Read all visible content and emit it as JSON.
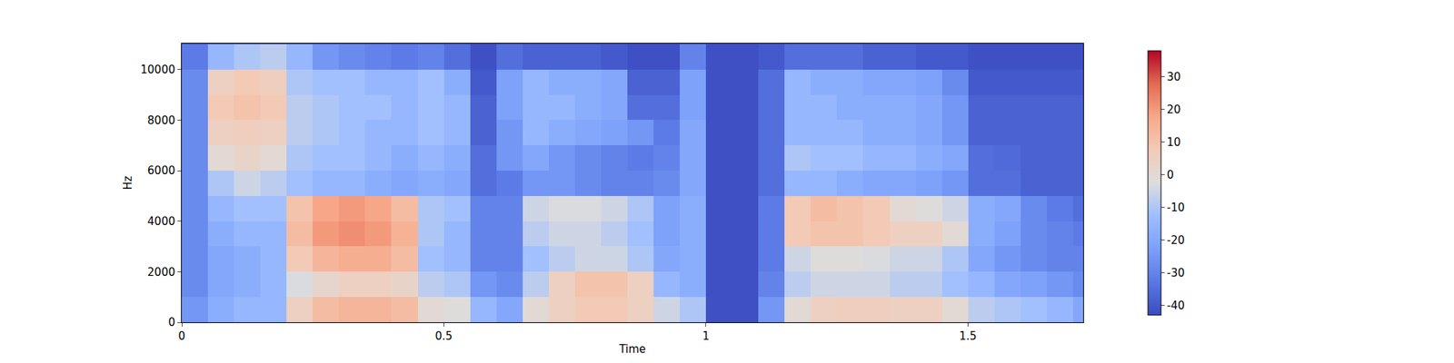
{
  "chart_data": {
    "type": "heatmap",
    "x_label": "Time",
    "y_label": "Hz",
    "x": [
      0.025,
      0.075,
      0.125,
      0.175,
      0.225,
      0.275,
      0.325,
      0.375,
      0.425,
      0.475,
      0.525,
      0.575,
      0.625,
      0.675,
      0.725,
      0.775,
      0.825,
      0.875,
      0.925,
      0.975,
      1.025,
      1.075,
      1.125,
      1.175,
      1.225,
      1.275,
      1.325,
      1.375,
      1.425,
      1.475,
      1.525,
      1.575,
      1.625,
      1.675,
      1.725
    ],
    "y": [
      500,
      1500,
      2500,
      3500,
      4500,
      5500,
      6500,
      7500,
      8500,
      9500,
      10500
    ],
    "z": [
      [
        -25,
        -18,
        -15,
        -15,
        5,
        12,
        14,
        14,
        12,
        0,
        -2,
        -15,
        -20,
        0,
        5,
        8,
        8,
        5,
        -5,
        -10,
        -42,
        -42,
        -25,
        0,
        5,
        6,
        6,
        5,
        5,
        0,
        -8,
        -10,
        -12,
        -15,
        -20
      ],
      [
        -28,
        -20,
        -18,
        -15,
        -3,
        2,
        5,
        5,
        3,
        -8,
        -10,
        -25,
        -28,
        -8,
        5,
        10,
        10,
        5,
        -15,
        -18,
        -42,
        -42,
        -30,
        -8,
        -5,
        -5,
        -5,
        -8,
        -8,
        -12,
        -15,
        -20,
        -22,
        -25,
        -28
      ],
      [
        -28,
        -20,
        -18,
        -15,
        8,
        14,
        16,
        16,
        12,
        -12,
        -15,
        -30,
        -30,
        -12,
        -8,
        -5,
        -5,
        -10,
        -20,
        -18,
        -42,
        -42,
        -32,
        -5,
        -2,
        -2,
        -3,
        -5,
        -5,
        -10,
        -20,
        -25,
        -28,
        -30,
        -30
      ],
      [
        -28,
        -18,
        -15,
        -15,
        12,
        20,
        22,
        20,
        15,
        -10,
        -15,
        -30,
        -30,
        -8,
        -5,
        -5,
        -8,
        -12,
        -22,
        -18,
        -42,
        -42,
        -32,
        8,
        10,
        10,
        8,
        5,
        5,
        0,
        -18,
        -22,
        -28,
        -30,
        -32
      ],
      [
        -28,
        -15,
        -12,
        -12,
        10,
        18,
        20,
        18,
        12,
        -10,
        -12,
        -30,
        -30,
        -5,
        -3,
        -3,
        -5,
        -10,
        -22,
        -18,
        -42,
        -42,
        -32,
        8,
        12,
        10,
        8,
        0,
        -2,
        -5,
        -18,
        -20,
        -28,
        -32,
        -35
      ],
      [
        -28,
        -10,
        -5,
        -8,
        -12,
        -15,
        -15,
        -18,
        -20,
        -18,
        -20,
        -35,
        -32,
        -25,
        -25,
        -28,
        -30,
        -30,
        -28,
        -20,
        -42,
        -42,
        -35,
        -15,
        -15,
        -18,
        -20,
        -20,
        -22,
        -25,
        -35,
        -35,
        -38,
        -38,
        -38
      ],
      [
        -28,
        0,
        3,
        0,
        -10,
        -12,
        -12,
        -15,
        -18,
        -15,
        -18,
        -35,
        -25,
        -20,
        -25,
        -28,
        -30,
        -32,
        -30,
        -20,
        -42,
        -42,
        -35,
        -10,
        -12,
        -12,
        -15,
        -15,
        -18,
        -20,
        -35,
        -36,
        -38,
        -38,
        -38
      ],
      [
        -28,
        5,
        6,
        5,
        -8,
        -10,
        -12,
        -15,
        -15,
        -12,
        -15,
        -38,
        -25,
        -15,
        -18,
        -20,
        -22,
        -25,
        -32,
        -20,
        -42,
        -42,
        -35,
        -15,
        -15,
        -15,
        -18,
        -18,
        -20,
        -25,
        -38,
        -38,
        -38,
        -38,
        -38
      ],
      [
        -28,
        8,
        10,
        8,
        -8,
        -10,
        -12,
        -12,
        -15,
        -12,
        -15,
        -38,
        -22,
        -15,
        -15,
        -18,
        -20,
        -35,
        -35,
        -22,
        -42,
        -42,
        -35,
        -15,
        -15,
        -18,
        -18,
        -18,
        -20,
        -25,
        -38,
        -38,
        -38,
        -38,
        -38
      ],
      [
        -28,
        5,
        8,
        6,
        -10,
        -12,
        -12,
        -15,
        -15,
        -12,
        -18,
        -40,
        -22,
        -15,
        -18,
        -18,
        -20,
        -38,
        -38,
        -22,
        -42,
        -42,
        -35,
        -15,
        -18,
        -18,
        -20,
        -20,
        -22,
        -28,
        -40,
        -40,
        -40,
        -40,
        -40
      ],
      [
        -32,
        -15,
        -10,
        -8,
        -15,
        -25,
        -28,
        -30,
        -32,
        -30,
        -35,
        -42,
        -35,
        -38,
        -38,
        -38,
        -40,
        -42,
        -42,
        -30,
        -42,
        -42,
        -40,
        -35,
        -35,
        -35,
        -38,
        -38,
        -40,
        -40,
        -42,
        -42,
        -42,
        -42,
        -42
      ]
    ],
    "xlim": [
      0,
      1.72
    ],
    "xticks": [
      0,
      0.5,
      1,
      1.5
    ],
    "ylim": [
      0,
      11025
    ],
    "yticks": [
      0,
      2000,
      4000,
      6000,
      8000,
      10000
    ],
    "zlim": [
      -43,
      38
    ],
    "zticks": [
      -40,
      -30,
      -20,
      -10,
      0,
      10,
      20,
      30
    ]
  }
}
